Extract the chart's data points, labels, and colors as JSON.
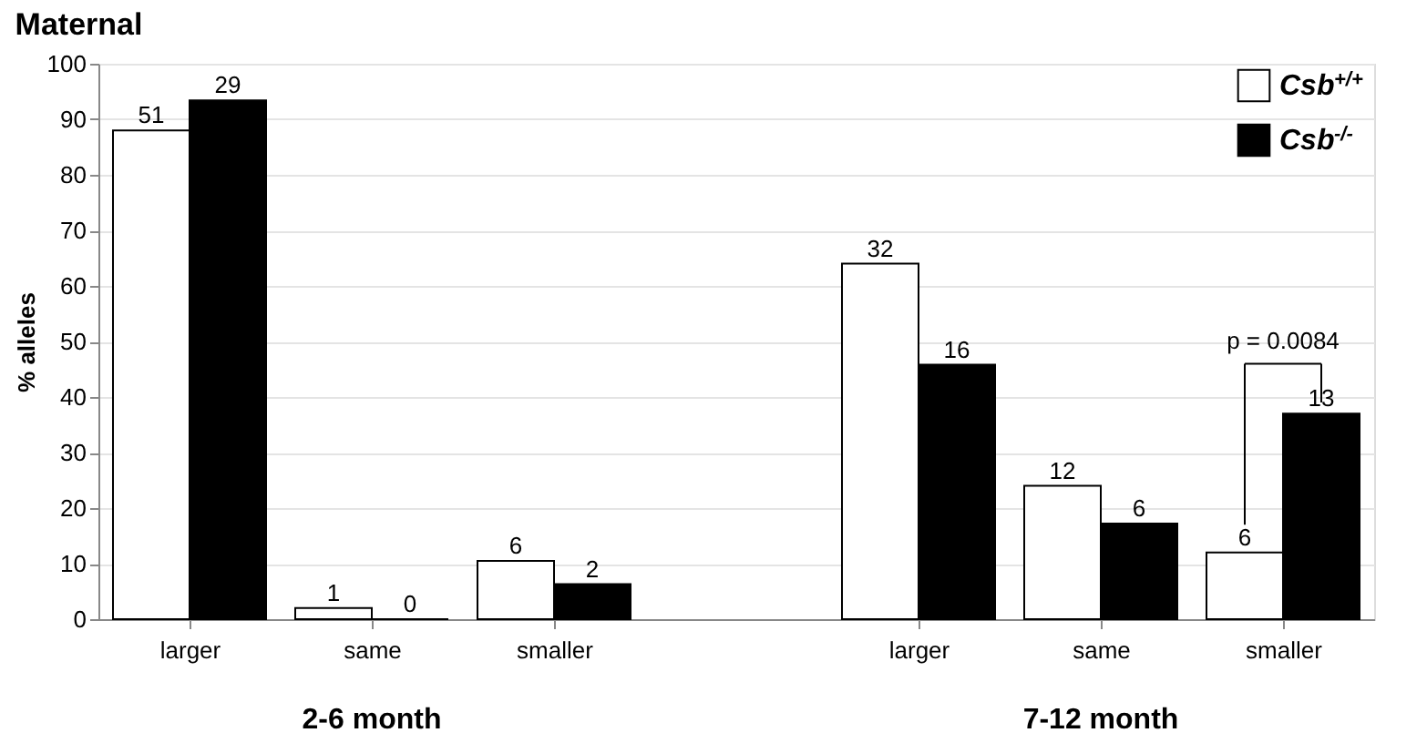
{
  "chart_data": {
    "type": "bar",
    "title": "Maternal",
    "ylabel": "% alleles",
    "categories": [
      "larger",
      "same",
      "smaller",
      null,
      "larger",
      "same",
      "smaller"
    ],
    "series": [
      {
        "name": "Csb$^{+/+}$",
        "color": "#ffffff",
        "values": [
          88,
          2,
          10.5,
          null,
          64,
          24,
          12
        ]
      },
      {
        "name": "Csb$^{-/-}$",
        "color": "#000000",
        "values": [
          93.4,
          0,
          6.3,
          null,
          45.8,
          17.2,
          37
        ]
      }
    ],
    "ylim": [
      0,
      100
    ],
    "yticks": [
      0,
      10,
      20,
      30,
      40,
      50,
      60,
      70,
      80,
      90,
      100
    ],
    "grid": "y",
    "legend": "top right",
    "annotations": [
      "2-6 month",
      "7-12 month",
      "p = 0.0084",
      {
        "text": "51",
        "x": "larger",
        "y": 88
      },
      {
        "text": "29",
        "x": "larger",
        "y": 93.4
      },
      {
        "text": "1",
        "x": "same",
        "y": 2
      },
      {
        "text": "0",
        "x": "same",
        "y": 0
      },
      {
        "text": "6",
        "x": "smaller",
        "y": 10.5
      },
      {
        "text": "2",
        "x": "smaller",
        "y": 6.3
      },
      "32",
      "16",
      "12",
      "6",
      "6",
      "13"
    ]
  }
}
